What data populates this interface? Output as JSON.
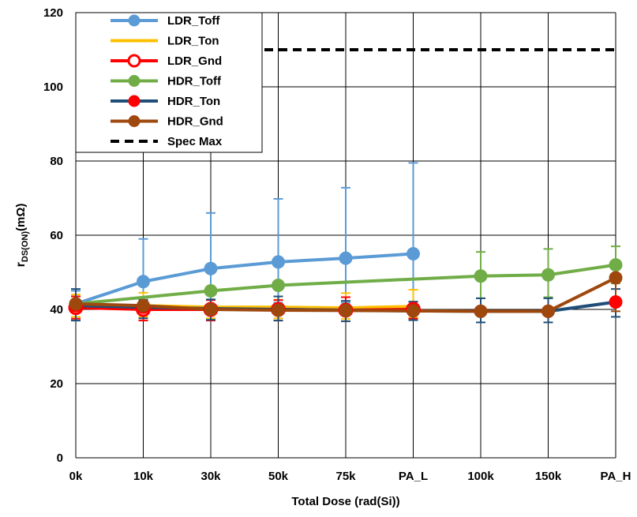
{
  "chart_data": {
    "type": "line",
    "title": "",
    "xlabel": "Total Dose (rad(Si))",
    "ylabel_main": "r",
    "ylabel_sub": "DS(ON)",
    "ylabel_unit": "(mΩ)",
    "ylim": [
      0,
      120
    ],
    "yticks": [
      0,
      20,
      40,
      60,
      80,
      100,
      120
    ],
    "categories": [
      "0k",
      "10k",
      "30k",
      "50k",
      "75k",
      "PA_L",
      "100k",
      "150k",
      "PA_H"
    ],
    "grid": true,
    "legend_position": "top-left",
    "series": [
      {
        "name": "LDR_Toff",
        "color": "#5B9BD5",
        "marker": "filled-circle",
        "values": [
          41.5,
          47.5,
          51,
          52.8,
          53.8,
          55,
          null,
          null,
          null
        ],
        "err_low": [
          4.5,
          5,
          10,
          11,
          12,
          14,
          null,
          null,
          null
        ],
        "err_high": [
          3.5,
          11.5,
          15,
          17,
          19,
          24.5,
          null,
          null,
          null
        ]
      },
      {
        "name": "LDR_Ton",
        "color": "#FFC000",
        "marker": "none",
        "values": [
          41,
          41,
          40.6,
          40.6,
          40.4,
          40.8,
          null,
          null,
          null
        ],
        "err_low": [
          3,
          3,
          3,
          3,
          3,
          3,
          null,
          null,
          null
        ],
        "err_high": [
          3,
          3.5,
          2,
          2,
          4,
          4.5,
          null,
          null,
          null
        ]
      },
      {
        "name": "LDR_Gnd",
        "color": "#FF0000",
        "marker": "open-circle",
        "values": [
          40.5,
          40,
          40,
          40,
          39.8,
          40,
          null,
          null,
          null
        ],
        "err_low": [
          3,
          3,
          3,
          3,
          3,
          2.5,
          null,
          null,
          null
        ],
        "err_high": [
          3,
          2.5,
          2.5,
          2.5,
          3.5,
          2,
          null,
          null,
          null
        ]
      },
      {
        "name": "HDR_Toff",
        "color": "#70AD47",
        "marker": "filled-circle",
        "values": [
          41.5,
          null,
          45,
          46.5,
          null,
          null,
          49,
          49.3,
          52
        ],
        "err_low": [
          null,
          null,
          null,
          null,
          null,
          null,
          6,
          6,
          5
        ],
        "err_high": [
          null,
          null,
          null,
          null,
          null,
          null,
          6.5,
          7,
          5
        ]
      },
      {
        "name": "HDR_Ton",
        "color": "#1F4E79",
        "marker": "red-filled-circle",
        "values": [
          41,
          40.6,
          40.2,
          40,
          39.8,
          39.6,
          39.5,
          39.5,
          42
        ],
        "err_low": [
          4,
          3,
          3,
          3,
          3,
          2.5,
          3,
          3,
          4
        ],
        "err_high": [
          4.5,
          2,
          2.5,
          3.5,
          2.5,
          2.5,
          3.5,
          3.5,
          3.5
        ]
      },
      {
        "name": "HDR_Gnd",
        "color": "#9E480E",
        "marker": "filled-circle",
        "values": [
          41.5,
          41,
          40,
          39.8,
          39.7,
          39.6,
          39.5,
          39.5,
          48.5
        ],
        "err_low": [
          null,
          null,
          null,
          null,
          null,
          null,
          null,
          null,
          9
        ],
        "err_high": [
          null,
          null,
          null,
          null,
          null,
          null,
          null,
          null,
          null
        ]
      },
      {
        "name": "Spec Max",
        "color": "#000000",
        "marker": "none",
        "dashed": true,
        "values": [
          110,
          110,
          110,
          110,
          110,
          110,
          110,
          110,
          110
        ]
      }
    ]
  }
}
